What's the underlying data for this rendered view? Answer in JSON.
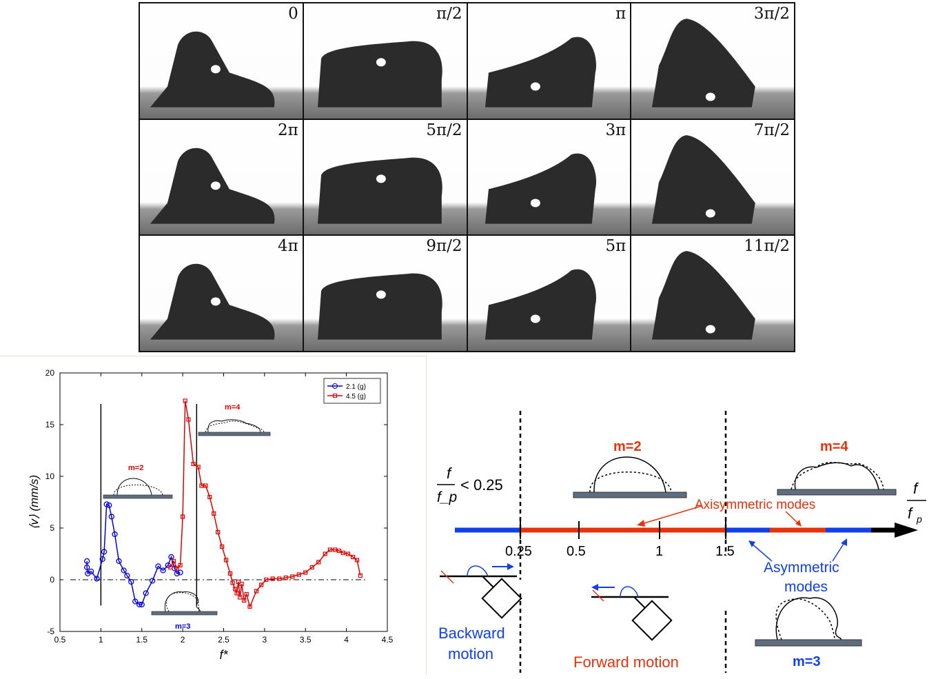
{
  "frames": {
    "phases": [
      "0",
      "π/2",
      "π",
      "3π/2",
      "2π",
      "5π/2",
      "3π",
      "7π/2",
      "4π",
      "9π/2",
      "5π",
      "11π/2"
    ]
  },
  "chart_data": {
    "type": "line",
    "xlabel": "f*",
    "ylabel": "⟨v⟩ (mm/s)",
    "xlim": [
      0.5,
      4.5
    ],
    "ylim": [
      -5,
      20
    ],
    "xticks": [
      "0.5",
      "1",
      "1.5",
      "2",
      "2.5",
      "3",
      "3.5",
      "4",
      "4.5"
    ],
    "yticks": [
      "-5",
      "0",
      "5",
      "10",
      "15",
      "20"
    ],
    "legend_position": "top-right",
    "vertical_lines_x": [
      1.0,
      2.17
    ],
    "zero_line": true,
    "series": [
      {
        "name": "2.1 (g)",
        "color": "#0000e0",
        "marker": "circle",
        "x": [
          0.83,
          0.83,
          0.84,
          0.88,
          0.95,
          1.02,
          1.04,
          1.07,
          1.1,
          1.13,
          1.17,
          1.22,
          1.28,
          1.32,
          1.37,
          1.42,
          1.47,
          1.5,
          1.55,
          1.63,
          1.7,
          1.76,
          1.82,
          1.86,
          1.9,
          1.93,
          1.97
        ],
        "y": [
          1.8,
          1.2,
          0.6,
          0.8,
          0.1,
          2.0,
          2.7,
          7.3,
          7.2,
          6.1,
          4.4,
          1.8,
          0.9,
          0.4,
          -0.2,
          -2.1,
          -2.4,
          -2.4,
          -1.3,
          -0.1,
          1.3,
          0.9,
          1.4,
          2.2,
          1.1,
          0.6,
          0.7
        ]
      },
      {
        "name": "4.5 (g)",
        "color": "#e00000",
        "marker": "square",
        "x": [
          1.85,
          1.89,
          1.93,
          1.97,
          2.0,
          2.03,
          2.07,
          2.13,
          2.19,
          2.23,
          2.28,
          2.33,
          2.38,
          2.43,
          2.48,
          2.53,
          2.58,
          2.61,
          2.64,
          2.66,
          2.68,
          2.7,
          2.72,
          2.75,
          2.78,
          2.82,
          2.9,
          2.96,
          3.02,
          3.1,
          3.18,
          3.26,
          3.34,
          3.42,
          3.5,
          3.58,
          3.66,
          3.74,
          3.8,
          3.86,
          3.91,
          3.96,
          4.02,
          4.08,
          4.13,
          4.17
        ],
        "y": [
          1.2,
          1.8,
          1.1,
          1.4,
          6.1,
          17.3,
          15.5,
          11.2,
          10.9,
          9.1,
          9.1,
          8.0,
          6.4,
          4.6,
          3.2,
          1.9,
          0.6,
          -0.3,
          -0.9,
          -1.3,
          -0.2,
          -1.7,
          -0.4,
          -2.0,
          -1.4,
          -2.6,
          -1.1,
          -0.5,
          0.0,
          0.1,
          0.1,
          0.2,
          0.3,
          0.5,
          0.7,
          1.2,
          1.7,
          2.5,
          2.9,
          2.9,
          2.8,
          2.6,
          2.5,
          2.2,
          1.9,
          0.4
        ]
      }
    ]
  },
  "inset_labels": {
    "m2": "m=2",
    "m3": "m=3",
    "m4": "m=4"
  },
  "diagram": {
    "ratio_label_num": "f",
    "ratio_label_den": "f_p",
    "threshold_text": "< 0.25",
    "axis_num": "f",
    "axis_den": "f",
    "axis_den_sub": "p",
    "ticks": [
      "0.25",
      "0.5",
      "1",
      "1.5"
    ],
    "m2": "m=2",
    "m4": "m=4",
    "m3": "m=3",
    "axisymmetric": "Axisymmetric modes",
    "asymmetric_1": "Asymmetric",
    "asymmetric_2": "modes",
    "backward_1": "Backward",
    "backward_2": "motion",
    "forward": "Forward motion",
    "colors": {
      "blue": "#1040e8",
      "red": "#e8320a",
      "axis_black": "#000000"
    }
  }
}
